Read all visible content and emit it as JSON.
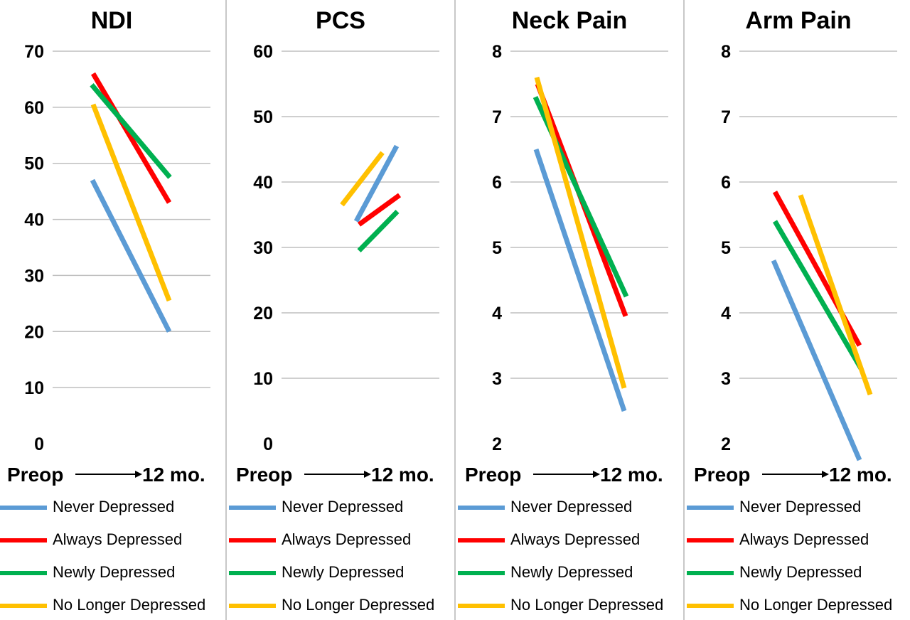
{
  "colors": {
    "never": "#5b9bd5",
    "always": "#ff0000",
    "newly": "#00b050",
    "no_longer": "#ffc000",
    "grid": "#bfbfbf",
    "divider": "#c8c8c8"
  },
  "x_axis": {
    "start_label": "Preop",
    "end_label": "12 mo."
  },
  "legend": [
    {
      "key": "never",
      "label": "Never Depressed"
    },
    {
      "key": "always",
      "label": "Always Depressed"
    },
    {
      "key": "newly",
      "label": "Newly Depressed"
    },
    {
      "key": "no_longer",
      "label": "No Longer Depressed"
    }
  ],
  "chart_data": [
    {
      "type": "line",
      "title": "NDI",
      "x": [
        "Preop",
        "12 mo."
      ],
      "ylim": [
        0,
        70
      ],
      "yticks": [
        0,
        10,
        20,
        30,
        40,
        50,
        60,
        70
      ],
      "grid": true,
      "series": [
        {
          "key": "never",
          "name": "Never Depressed",
          "values": [
            47,
            20
          ]
        },
        {
          "key": "always",
          "name": "Always Depressed",
          "values": [
            66,
            43
          ]
        },
        {
          "key": "newly",
          "name": "Newly Depressed",
          "values": [
            64,
            47.5
          ]
        },
        {
          "key": "no_longer",
          "name": "No Longer Depressed",
          "values": [
            60.5,
            25.5
          ]
        }
      ]
    },
    {
      "type": "line",
      "title": "PCS",
      "x": [
        "Preop",
        "12 mo."
      ],
      "ylim": [
        0,
        60
      ],
      "yticks": [
        0,
        10,
        20,
        30,
        40,
        50,
        60
      ],
      "grid": true,
      "series": [
        {
          "key": "never",
          "name": "Never Depressed",
          "values": [
            34,
            45.5
          ]
        },
        {
          "key": "always",
          "name": "Always Depressed",
          "values": [
            33.5,
            38
          ]
        },
        {
          "key": "newly",
          "name": "Newly Depressed",
          "values": [
            29.5,
            35.5
          ]
        },
        {
          "key": "no_longer",
          "name": "No Longer Depressed",
          "values": [
            36.5,
            44.5
          ]
        }
      ]
    },
    {
      "type": "line",
      "title": "Neck Pain",
      "x": [
        "Preop",
        "12 mo."
      ],
      "ylim": [
        2,
        8
      ],
      "yticks": [
        2,
        3,
        4,
        5,
        6,
        7,
        8
      ],
      "grid": true,
      "series": [
        {
          "key": "never",
          "name": "Never Depressed",
          "values": [
            6.5,
            2.5
          ]
        },
        {
          "key": "always",
          "name": "Always Depressed",
          "values": [
            7.5,
            3.95
          ]
        },
        {
          "key": "newly",
          "name": "Newly Depressed",
          "values": [
            7.3,
            4.25
          ]
        },
        {
          "key": "no_longer",
          "name": "No Longer Depressed",
          "values": [
            7.6,
            2.85
          ]
        }
      ]
    },
    {
      "type": "line",
      "title": "Arm Pain",
      "x": [
        "Preop",
        "12 mo."
      ],
      "ylim": [
        2,
        8
      ],
      "yticks": [
        2,
        3,
        4,
        5,
        6,
        7,
        8
      ],
      "grid": true,
      "series": [
        {
          "key": "never",
          "name": "Never Depressed",
          "values": [
            4.8,
            1.75
          ]
        },
        {
          "key": "always",
          "name": "Always Depressed",
          "values": [
            5.85,
            3.5
          ]
        },
        {
          "key": "newly",
          "name": "Newly Depressed",
          "values": [
            5.4,
            3.15
          ]
        },
        {
          "key": "no_longer",
          "name": "No Longer Depressed",
          "values": [
            5.8,
            2.75
          ]
        }
      ]
    }
  ]
}
